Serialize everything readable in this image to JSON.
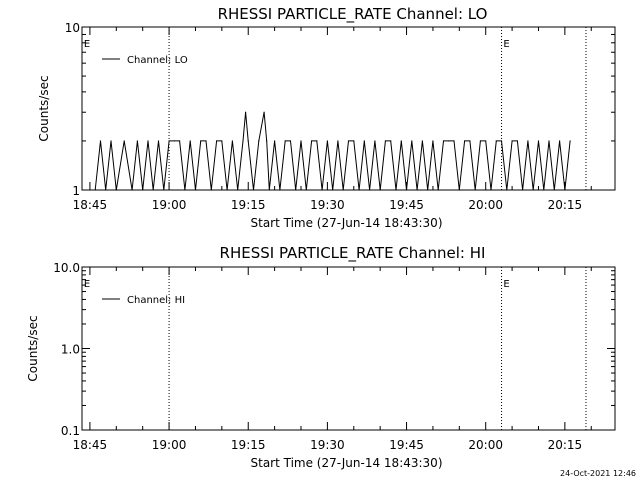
{
  "footer": {
    "timestamp": "24-Oct-2021 12:46"
  },
  "chart_data": [
    {
      "type": "line",
      "title": "RHESSI PARTICLE_RATE Channel: LO",
      "xlabel": "Start Time (27-Jun-14 18:43:30)",
      "ylabel": "Counts/sec",
      "y_scale": "log",
      "ylim": [
        1,
        10
      ],
      "xlim": [
        "18:43:30",
        "20:24:30"
      ],
      "x_ticks": [
        "18:45",
        "19:00",
        "19:15",
        "19:30",
        "19:45",
        "20:00",
        "20:15"
      ],
      "y_ticks": [
        {
          "value": 1,
          "label": "1"
        },
        {
          "value": 10,
          "label": "10"
        }
      ],
      "legend": {
        "position": "top-left",
        "entries": [
          "Channel: LO"
        ]
      },
      "vlines": [
        "19:00",
        "20:03",
        "20:19"
      ],
      "markers": [
        {
          "time": "18:43:30",
          "label": "E"
        },
        {
          "time": "20:03",
          "label": "E"
        }
      ],
      "series": [
        {
          "name": "Channel: LO",
          "x": [
            "18:46:00",
            "18:47:00",
            "18:48:00",
            "18:49:00",
            "18:50:00",
            "18:51:30",
            "18:53:00",
            "18:54:00",
            "18:55:00",
            "18:56:00",
            "18:57:00",
            "18:58:00",
            "18:59:00",
            "19:00:00",
            "19:01:00",
            "19:02:00",
            "19:03:00",
            "19:04:00",
            "19:05:00",
            "19:06:00",
            "19:07:00",
            "19:08:00",
            "19:09:00",
            "19:10:00",
            "19:11:00",
            "19:12:00",
            "19:13:00",
            "19:14:00",
            "19:14:30",
            "19:15:00",
            "19:16:00",
            "19:17:00",
            "19:18:00",
            "19:18:30",
            "19:19:00",
            "19:20:00",
            "19:21:00",
            "19:22:00",
            "19:23:00",
            "19:24:00",
            "19:25:00",
            "19:26:00",
            "19:27:00",
            "19:28:00",
            "19:29:00",
            "19:30:00",
            "19:31:00",
            "19:32:00",
            "19:33:00",
            "19:34:00",
            "19:35:00",
            "19:36:00",
            "19:37:00",
            "19:38:00",
            "19:39:00",
            "19:40:00",
            "19:41:00",
            "19:42:00",
            "19:43:00",
            "19:44:00",
            "19:45:00",
            "19:46:00",
            "19:47:00",
            "19:48:00",
            "19:49:00",
            "19:50:00",
            "19:51:00",
            "19:52:00",
            "19:53:00",
            "19:54:00",
            "19:55:00",
            "19:56:00",
            "19:57:00",
            "19:58:00",
            "19:59:00",
            "20:00:00",
            "20:01:00",
            "20:02:00",
            "20:03:00",
            "20:04:00",
            "20:05:00",
            "20:06:00",
            "20:07:00",
            "20:08:00",
            "20:09:00",
            "20:10:00",
            "20:11:00",
            "20:12:00",
            "20:13:00",
            "20:14:00",
            "20:15:00",
            "20:16:00"
          ],
          "y": [
            1,
            2,
            1,
            2,
            1,
            2,
            1,
            2,
            1,
            2,
            1,
            2,
            1,
            2,
            2,
            2,
            1,
            2,
            1,
            2,
            2,
            1,
            2,
            2,
            1,
            2,
            1,
            2,
            3,
            2,
            1,
            2,
            3,
            2,
            1,
            2,
            1,
            2,
            2,
            1,
            2,
            1,
            2,
            2,
            1,
            2,
            1,
            2,
            1,
            2,
            2,
            1,
            2,
            1,
            2,
            1,
            2,
            2,
            1,
            2,
            1,
            2,
            1,
            2,
            1,
            2,
            1,
            2,
            2,
            2,
            1,
            2,
            2,
            1,
            2,
            2,
            1,
            2,
            2,
            1,
            2,
            2,
            1,
            2,
            1,
            2,
            1,
            2,
            1,
            2,
            1,
            2
          ]
        }
      ]
    },
    {
      "type": "line",
      "title": "RHESSI PARTICLE_RATE Channel: HI",
      "xlabel": "Start Time (27-Jun-14 18:43:30)",
      "ylabel": "Counts/sec",
      "y_scale": "log",
      "ylim": [
        0.1,
        10
      ],
      "xlim": [
        "18:43:30",
        "20:24:30"
      ],
      "x_ticks": [
        "18:45",
        "19:00",
        "19:15",
        "19:30",
        "19:45",
        "20:00",
        "20:15"
      ],
      "y_ticks": [
        {
          "value": 0.1,
          "label": "0.1"
        },
        {
          "value": 1,
          "label": "1.0"
        },
        {
          "value": 10,
          "label": "10.0"
        }
      ],
      "legend": {
        "position": "top-left",
        "entries": [
          "Channel: HI"
        ]
      },
      "vlines": [
        "19:00",
        "20:03",
        "20:19"
      ],
      "markers": [
        {
          "time": "18:43:30",
          "label": "E"
        },
        {
          "time": "20:03",
          "label": "E"
        }
      ],
      "series": [
        {
          "name": "Channel: HI",
          "x": [],
          "y": []
        }
      ]
    }
  ]
}
